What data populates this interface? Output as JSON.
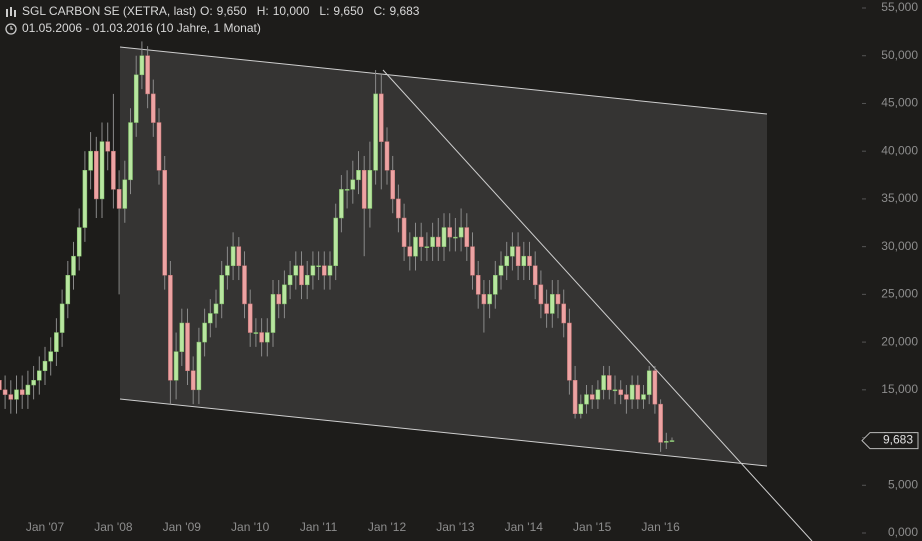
{
  "chart_data": {
    "type": "candlestick",
    "title": "SGL CARBON SE (XETRA, last)",
    "ohlc_header": [
      {
        "label": "O:",
        "value": "9,650"
      },
      {
        "label": "H:",
        "value": "10,000"
      },
      {
        "label": "L:",
        "value": "9,650"
      },
      {
        "label": "C:",
        "value": "9,683"
      }
    ],
    "period": "01.05.2006 - 01.03.2016 (10 Jahre, 1 Monat)",
    "categories": [
      null,
      null,
      null,
      null,
      null,
      null,
      null,
      null,
      "Jan '07",
      null,
      null,
      null,
      null,
      null,
      null,
      null,
      null,
      null,
      null,
      null,
      "Jan '08",
      null,
      null,
      null,
      null,
      null,
      null,
      null,
      null,
      null,
      null,
      null,
      "Jan '09",
      null,
      null,
      null,
      null,
      null,
      null,
      null,
      null,
      null,
      null,
      null,
      "Jan '10",
      null,
      null,
      null,
      null,
      null,
      null,
      null,
      null,
      null,
      null,
      null,
      "Jan '11",
      null,
      null,
      null,
      null,
      null,
      null,
      null,
      null,
      null,
      null,
      null,
      "Jan '12",
      null,
      null,
      null,
      null,
      null,
      null,
      null,
      null,
      null,
      null,
      null,
      "Jan '13",
      null,
      null,
      null,
      null,
      null,
      null,
      null,
      null,
      null,
      null,
      null,
      "Jan '14",
      null,
      null,
      null,
      null,
      null,
      null,
      null,
      null,
      null,
      null,
      null,
      "Jan '15",
      null,
      null,
      null,
      null,
      null,
      null,
      null,
      null,
      null,
      null,
      null,
      "Jan '16",
      null,
      null
    ],
    "open": [
      16,
      15,
      14.5,
      14,
      15,
      14.5,
      15.5,
      16,
      17,
      18,
      19,
      21,
      24,
      27,
      29,
      32,
      38,
      40,
      35,
      41,
      40,
      36,
      34,
      37,
      43,
      48,
      50,
      46,
      43,
      38,
      27,
      16,
      19,
      22,
      17,
      15,
      20,
      22,
      23,
      24,
      27,
      28,
      30,
      28,
      24,
      21,
      21,
      20,
      21,
      25,
      24,
      26,
      27,
      28,
      26,
      27,
      28,
      28,
      27,
      28,
      33,
      36,
      36,
      37,
      38,
      34,
      38,
      46,
      41,
      38,
      35,
      33,
      30,
      29,
      31,
      30,
      30,
      31,
      30,
      32,
      31,
      31,
      32,
      30,
      27,
      25,
      24,
      25,
      27,
      28,
      29,
      30,
      28,
      29,
      28,
      26,
      24,
      23,
      25,
      24,
      22,
      16,
      12.5,
      13.5,
      14.5,
      14,
      15,
      16.5,
      15,
      15,
      14.5,
      14,
      15.5,
      14,
      14.5,
      17,
      13.5,
      9.5,
      9.65
    ],
    "high": [
      17.5,
      16.5,
      16,
      16.5,
      16.5,
      17,
      17.5,
      18.5,
      19.5,
      20.5,
      22.5,
      25.5,
      28.5,
      30.5,
      34,
      40,
      42,
      41.5,
      43,
      43,
      46,
      38,
      39,
      44.5,
      50,
      51.5,
      51,
      47.5,
      44.5,
      39.5,
      28.5,
      21,
      23.5,
      23.5,
      18.5,
      21.5,
      23.5,
      24.5,
      25.5,
      28.5,
      30,
      31.5,
      31,
      29.5,
      25.5,
      22.5,
      22.5,
      22.5,
      26.5,
      26.5,
      27.5,
      28.5,
      29.5,
      29.5,
      28.5,
      29.5,
      29.5,
      29.5,
      29.5,
      34.5,
      37.5,
      38,
      39,
      40,
      39.5,
      41,
      48.5,
      48,
      42.5,
      39.5,
      36.5,
      34.5,
      31.5,
      32.5,
      32.5,
      31.5,
      32.5,
      33,
      33.5,
      33.5,
      33,
      34,
      33.5,
      31.5,
      28.5,
      26.5,
      26.5,
      28.5,
      29.5,
      30.5,
      31.5,
      31.5,
      30.5,
      30.5,
      29.5,
      27.5,
      25.5,
      26.5,
      26.5,
      25.5,
      23.5,
      17.5,
      14.5,
      15.5,
      15.5,
      16,
      17.5,
      17.5,
      16.5,
      16,
      15.5,
      16.5,
      16.5,
      15.5,
      17.5,
      17.5,
      14,
      10.5,
      10
    ],
    "low": [
      13.5,
      13,
      12.5,
      12.5,
      13,
      13,
      14,
      14.5,
      15.5,
      16.5,
      17.5,
      19.5,
      22.5,
      25.5,
      27.5,
      30.5,
      36,
      33,
      33,
      38,
      34,
      25,
      32.5,
      35.5,
      41.5,
      46.5,
      44.5,
      41.5,
      36.5,
      25.5,
      13.5,
      14,
      17.5,
      15.5,
      13.5,
      13.5,
      18.5,
      20.5,
      21.5,
      22.5,
      25.5,
      26.5,
      26.5,
      22.5,
      19.5,
      19.5,
      18.5,
      18.5,
      19.5,
      22.5,
      22.5,
      24.5,
      25.5,
      24.5,
      24.5,
      25.5,
      26.5,
      25.5,
      25.5,
      26.5,
      31.5,
      34,
      34.5,
      35.5,
      29,
      32,
      36.5,
      36,
      36.5,
      33.5,
      31.5,
      28.5,
      27.5,
      27.5,
      28.5,
      28.5,
      28.5,
      28.5,
      28.5,
      29.5,
      29.5,
      29.5,
      28.5,
      25.5,
      23.5,
      21,
      22.5,
      23.5,
      25.5,
      26.5,
      27.5,
      26.5,
      26.5,
      26.5,
      24.5,
      22.5,
      21.5,
      21.5,
      22.5,
      20.5,
      14.5,
      12,
      12,
      12.5,
      13,
      13,
      14,
      14,
      13.5,
      13.5,
      12.5,
      13,
      13,
      13,
      13.5,
      12.5,
      8.5,
      8.8,
      9.65
    ],
    "close": [
      15,
      14.5,
      14,
      15,
      14.5,
      15.5,
      16,
      17,
      18,
      19,
      21,
      24,
      27,
      29,
      32,
      38,
      40,
      35,
      41,
      40,
      36,
      34,
      37,
      43,
      48,
      50,
      46,
      43,
      38,
      27,
      16,
      19,
      22,
      17,
      15,
      20,
      22,
      23,
      24,
      27,
      28,
      30,
      28,
      24,
      21,
      21,
      20,
      21,
      25,
      24,
      26,
      27,
      28,
      26,
      27,
      28,
      28,
      27,
      28,
      33,
      36,
      36,
      37,
      38,
      34,
      38,
      46,
      41,
      38,
      35,
      33,
      30,
      29,
      31,
      30,
      30,
      31,
      30,
      32,
      31,
      31,
      32,
      30,
      27,
      25,
      24,
      25,
      27,
      28,
      29,
      30,
      28,
      29,
      28,
      26,
      24,
      23,
      25,
      24,
      22,
      16,
      12.5,
      13.5,
      14.5,
      14,
      15,
      16.5,
      15,
      15,
      14.5,
      14,
      15.5,
      14,
      14.5,
      17,
      13.5,
      9.5,
      9.6,
      9.683
    ],
    "up_color": "#b8e6a0",
    "down_color": "#eda3a3",
    "ylim": [
      0,
      55
    ],
    "yticks": [
      {
        "value": 0,
        "label": "0,000"
      },
      {
        "value": 5,
        "label": "5,000"
      },
      {
        "value": 10,
        "label": "10,000"
      },
      {
        "value": 15,
        "label": "15,000"
      },
      {
        "value": 20,
        "label": "20,000"
      },
      {
        "value": 25,
        "label": "25,000"
      },
      {
        "value": 30,
        "label": "30,000"
      },
      {
        "value": 35,
        "label": "35,000"
      },
      {
        "value": 40,
        "label": "40,000"
      },
      {
        "value": 45,
        "label": "45,000"
      },
      {
        "value": 50,
        "label": "50,000"
      },
      {
        "value": 55,
        "label": "55,000"
      }
    ],
    "last_value": {
      "value": 9.683,
      "label": "9,683"
    },
    "grid": false
  }
}
